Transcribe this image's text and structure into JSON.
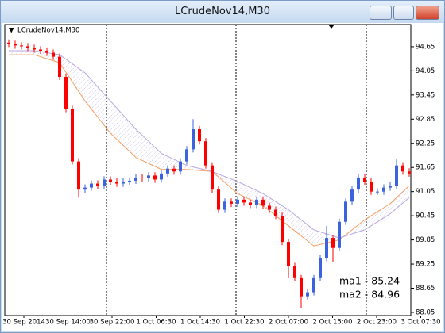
{
  "chart_data": {
    "type": "candlestick",
    "title": "LCrudeNov14,M30",
    "chart_label": "LCrudeNov14,M30",
    "up_color": "#3b63e0",
    "down_color": "#ff0000",
    "open": [
      94.75,
      94.72,
      94.68,
      94.66,
      94.62,
      94.58,
      94.55,
      94.5,
      94.4,
      93.9,
      93.1,
      91.8,
      91.1,
      91.15,
      91.25,
      91.2,
      91.35,
      91.3,
      91.25,
      91.3,
      91.32,
      91.4,
      91.38,
      91.45,
      91.35,
      91.5,
      91.62,
      91.55,
      91.8,
      92.1,
      92.6,
      92.3,
      91.7,
      91.1,
      90.6,
      90.8,
      90.75,
      90.85,
      90.78,
      90.72,
      90.85,
      90.7,
      90.6,
      90.45,
      89.8,
      89.2,
      88.9,
      88.45,
      88.55,
      88.9,
      89.4,
      89.9,
      89.65,
      90.3,
      90.8,
      91.1,
      91.4,
      91.3,
      91.05,
      91.05,
      91.15,
      91.2,
      91.7,
      91.55
    ],
    "close": [
      94.72,
      94.68,
      94.66,
      94.62,
      94.58,
      94.55,
      94.5,
      94.4,
      93.9,
      93.1,
      91.8,
      91.1,
      91.15,
      91.25,
      91.2,
      91.35,
      91.3,
      91.25,
      91.3,
      91.32,
      91.4,
      91.38,
      91.45,
      91.35,
      91.5,
      91.62,
      91.55,
      91.8,
      92.1,
      92.6,
      92.3,
      91.7,
      91.1,
      90.6,
      90.8,
      90.75,
      90.85,
      90.78,
      90.72,
      90.85,
      90.7,
      90.6,
      90.45,
      89.8,
      89.2,
      88.9,
      88.45,
      88.55,
      88.9,
      89.4,
      89.9,
      89.65,
      90.3,
      90.8,
      91.1,
      91.4,
      91.3,
      91.05,
      91.05,
      91.15,
      91.2,
      91.7,
      91.55,
      91.5
    ],
    "high": [
      94.83,
      94.8,
      94.76,
      94.74,
      94.7,
      94.66,
      94.63,
      94.58,
      94.48,
      93.98,
      93.18,
      91.88,
      91.23,
      91.33,
      91.33,
      91.43,
      91.43,
      91.38,
      91.38,
      91.4,
      91.48,
      91.48,
      91.53,
      91.53,
      91.58,
      91.7,
      91.7,
      91.88,
      92.18,
      92.85,
      92.68,
      92.38,
      91.78,
      91.18,
      90.88,
      90.88,
      90.93,
      90.93,
      90.86,
      90.93,
      90.93,
      90.78,
      90.68,
      90.53,
      89.88,
      89.28,
      88.98,
      88.63,
      88.98,
      89.48,
      90.2,
      89.98,
      90.38,
      90.88,
      91.18,
      91.48,
      91.48,
      91.38,
      91.13,
      91.23,
      91.28,
      91.85,
      91.78,
      91.63
    ],
    "low": [
      94.64,
      94.6,
      94.58,
      94.54,
      94.5,
      94.47,
      94.42,
      94.32,
      93.82,
      93.02,
      91.72,
      90.9,
      91.02,
      91.07,
      91.12,
      91.12,
      91.22,
      91.17,
      91.17,
      91.22,
      91.24,
      91.3,
      91.3,
      91.27,
      91.27,
      91.42,
      91.47,
      91.47,
      91.72,
      92.02,
      92.22,
      91.62,
      91.02,
      90.52,
      90.52,
      90.67,
      90.67,
      90.7,
      90.64,
      90.64,
      90.62,
      90.52,
      90.37,
      89.72,
      88.9,
      88.82,
      88.15,
      88.37,
      88.47,
      88.82,
      89.32,
      89.3,
      89.57,
      90.22,
      90.72,
      91.02,
      91.22,
      90.97,
      90.97,
      90.97,
      91.07,
      91.12,
      91.47,
      91.42
    ],
    "series": [
      {
        "name": "ma1",
        "color": "#f5a060",
        "x": [
          0,
          4,
          8,
          12,
          16,
          20,
          24,
          28,
          32,
          36,
          40,
          44,
          48,
          52,
          56,
          60,
          63
        ],
        "values": [
          94.45,
          94.45,
          94.25,
          93.3,
          92.5,
          91.9,
          91.6,
          91.6,
          91.55,
          91.0,
          90.7,
          90.2,
          89.7,
          89.85,
          90.35,
          90.75,
          91.2
        ]
      },
      {
        "name": "ma2",
        "color": "#b8a8e0",
        "x": [
          0,
          4,
          8,
          12,
          16,
          20,
          24,
          28,
          32,
          36,
          40,
          44,
          48,
          52,
          56,
          60,
          63
        ],
        "values": [
          94.55,
          94.55,
          94.45,
          94.0,
          93.3,
          92.6,
          92.0,
          91.7,
          91.55,
          91.3,
          91.0,
          90.6,
          90.1,
          89.9,
          90.1,
          90.5,
          90.9
        ]
      }
    ],
    "legend_labels": [
      "ma1 - 85.24",
      "ma2 - 84.96"
    ],
    "ylim": [
      88.01,
      95.2
    ],
    "yticks": [
      94.65,
      94.05,
      93.45,
      92.85,
      92.25,
      91.65,
      91.05,
      90.45,
      89.85,
      89.25,
      88.65,
      88.05
    ],
    "x_labels": [
      "30 Sep 2014",
      "30 Sep 14:00",
      "30 Sep 22:00",
      "1 Oct 06:30",
      "1 Oct 14:30",
      "1 Oct 22:30",
      "2 Oct 07:00",
      "2 Oct 15:00",
      "2 Oct 23:00",
      "3 Oct 07:30"
    ]
  }
}
